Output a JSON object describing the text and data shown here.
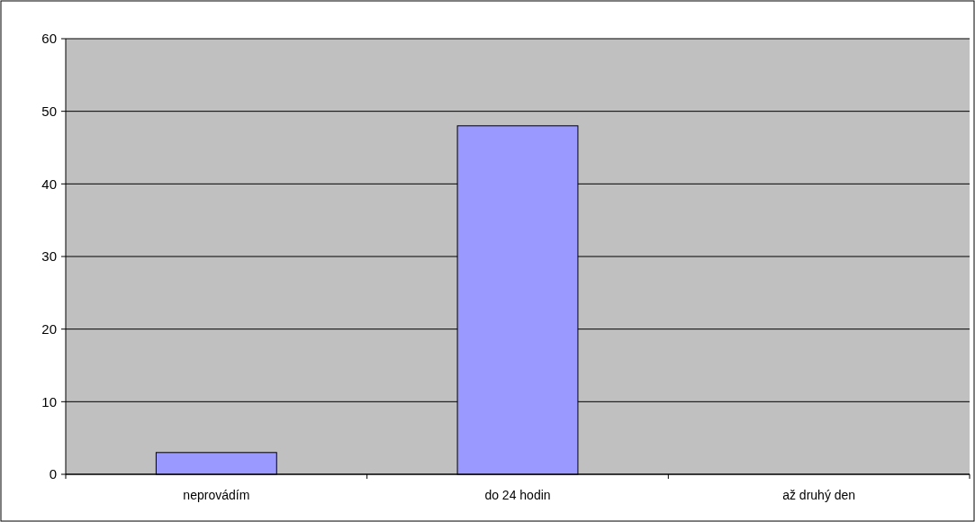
{
  "chart_data": {
    "type": "bar",
    "categories": [
      "neprovádím",
      "do 24 hodin",
      "až druhý den"
    ],
    "values": [
      3,
      48,
      0
    ],
    "color": "#9999ff",
    "ylim": [
      0,
      60
    ],
    "yticks": [
      0,
      10,
      20,
      30,
      40,
      50,
      60
    ],
    "grid": "y"
  }
}
